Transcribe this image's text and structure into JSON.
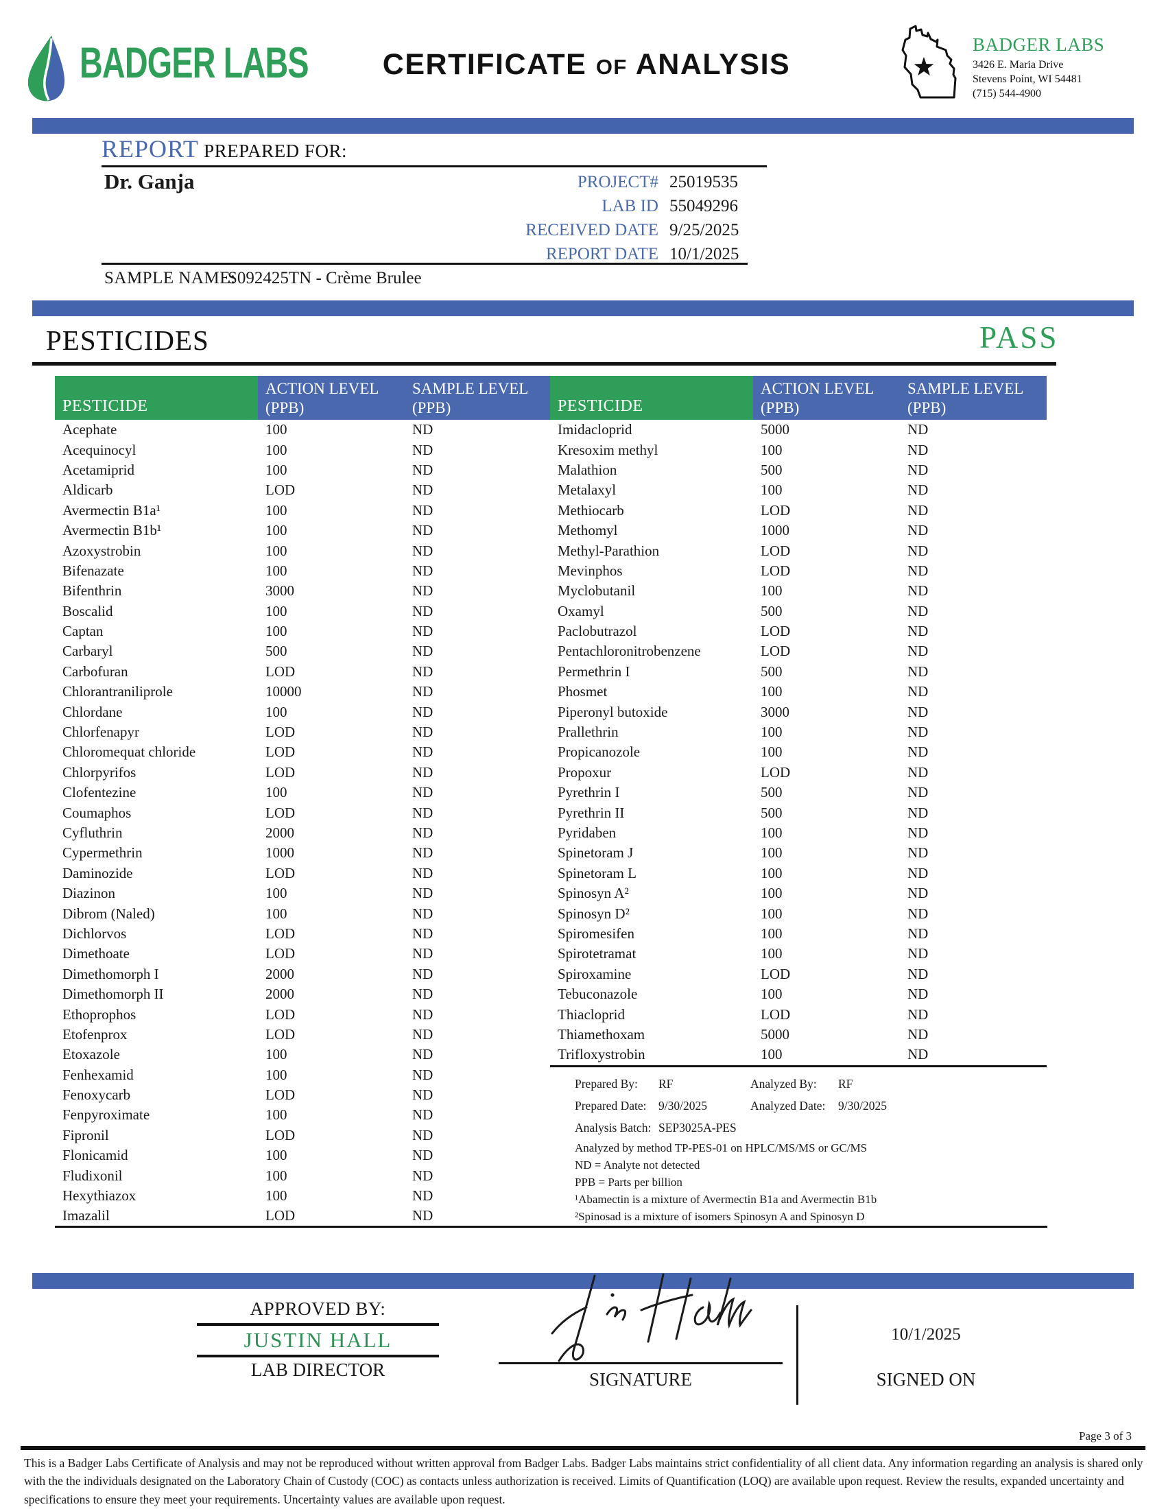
{
  "colors": {
    "accent_blue": "#4464ad",
    "accent_green": "#2f9e58",
    "label_blue": "#4a6aad",
    "approver_green": "#2e8f55"
  },
  "header": {
    "wordmark": "BADGER LABS",
    "title": {
      "part1": "CERTIFICATE",
      "part2": "of",
      "part3": "ANALYSIS"
    },
    "lab": {
      "name": "BADGER LABS",
      "address1": "3426 E. Maria Drive",
      "address2": "Stevens Point, WI 54481",
      "phone": "(715) 544-4900"
    }
  },
  "report": {
    "label_report": "REPORT",
    "label_prepared_for": " PREPARED FOR:",
    "client": "Dr. Ganja",
    "meta": [
      {
        "label": "PROJECT#",
        "value": "25019535"
      },
      {
        "label": "LAB ID",
        "value": "55049296"
      },
      {
        "label": "RECEIVED DATE",
        "value": "9/25/2025"
      },
      {
        "label": "REPORT DATE",
        "value": "10/1/2025"
      }
    ],
    "sample_name_label": "SAMPLE NAME:",
    "sample_name": "S092425TN - Crème Brulee"
  },
  "section": {
    "title": "PESTICIDES",
    "result": "PASS"
  },
  "table": {
    "headers": {
      "pesticide": "PESTICIDE",
      "action1": "ACTION LEVEL",
      "action2": "(PPB)",
      "sample1": "SAMPLE LEVEL",
      "sample2": "(PPB)"
    },
    "left_rows": [
      {
        "name": "Acephate",
        "action": "100",
        "sample": "ND"
      },
      {
        "name": "Acequinocyl",
        "action": "100",
        "sample": "ND"
      },
      {
        "name": "Acetamiprid",
        "action": "100",
        "sample": "ND"
      },
      {
        "name": "Aldicarb",
        "action": "LOD",
        "sample": "ND"
      },
      {
        "name": "Avermectin B1a¹",
        "action": "100",
        "sample": "ND"
      },
      {
        "name": "Avermectin B1b¹",
        "action": "100",
        "sample": "ND"
      },
      {
        "name": "Azoxystrobin",
        "action": "100",
        "sample": "ND"
      },
      {
        "name": "Bifenazate",
        "action": "100",
        "sample": "ND"
      },
      {
        "name": "Bifenthrin",
        "action": "3000",
        "sample": "ND"
      },
      {
        "name": "Boscalid",
        "action": "100",
        "sample": "ND"
      },
      {
        "name": "Captan",
        "action": "100",
        "sample": "ND"
      },
      {
        "name": "Carbaryl",
        "action": "500",
        "sample": "ND"
      },
      {
        "name": "Carbofuran",
        "action": "LOD",
        "sample": "ND"
      },
      {
        "name": "Chlorantraniliprole",
        "action": "10000",
        "sample": "ND"
      },
      {
        "name": "Chlordane",
        "action": "100",
        "sample": "ND"
      },
      {
        "name": "Chlorfenapyr",
        "action": "LOD",
        "sample": "ND"
      },
      {
        "name": "Chloromequat chloride",
        "action": "LOD",
        "sample": "ND"
      },
      {
        "name": "Chlorpyrifos",
        "action": "LOD",
        "sample": "ND"
      },
      {
        "name": "Clofentezine",
        "action": "100",
        "sample": "ND"
      },
      {
        "name": "Coumaphos",
        "action": "LOD",
        "sample": "ND"
      },
      {
        "name": "Cyfluthrin",
        "action": "2000",
        "sample": "ND"
      },
      {
        "name": "Cypermethrin",
        "action": "1000",
        "sample": "ND"
      },
      {
        "name": "Daminozide",
        "action": "LOD",
        "sample": "ND"
      },
      {
        "name": "Diazinon",
        "action": "100",
        "sample": "ND"
      },
      {
        "name": "Dibrom (Naled)",
        "action": "100",
        "sample": "ND"
      },
      {
        "name": "Dichlorvos",
        "action": "LOD",
        "sample": "ND"
      },
      {
        "name": "Dimethoate",
        "action": "LOD",
        "sample": "ND"
      },
      {
        "name": "Dimethomorph I",
        "action": "2000",
        "sample": "ND"
      },
      {
        "name": "Dimethomorph II",
        "action": "2000",
        "sample": "ND"
      },
      {
        "name": "Ethoprophos",
        "action": "LOD",
        "sample": "ND"
      },
      {
        "name": "Etofenprox",
        "action": "LOD",
        "sample": "ND"
      },
      {
        "name": "Etoxazole",
        "action": "100",
        "sample": "ND"
      },
      {
        "name": "Fenhexamid",
        "action": "100",
        "sample": "ND"
      },
      {
        "name": "Fenoxycarb",
        "action": "LOD",
        "sample": "ND"
      },
      {
        "name": "Fenpyroximate",
        "action": "100",
        "sample": "ND"
      },
      {
        "name": "Fipronil",
        "action": "LOD",
        "sample": "ND"
      },
      {
        "name": "Flonicamid",
        "action": "100",
        "sample": "ND"
      },
      {
        "name": "Fludixonil",
        "action": "100",
        "sample": "ND"
      },
      {
        "name": "Hexythiazox",
        "action": "100",
        "sample": "ND"
      },
      {
        "name": "Imazalil",
        "action": "LOD",
        "sample": "ND"
      }
    ],
    "right_rows": [
      {
        "name": "Imidacloprid",
        "action": "5000",
        "sample": "ND"
      },
      {
        "name": "Kresoxim methyl",
        "action": "100",
        "sample": "ND"
      },
      {
        "name": "Malathion",
        "action": "500",
        "sample": "ND"
      },
      {
        "name": "Metalaxyl",
        "action": "100",
        "sample": "ND"
      },
      {
        "name": "Methiocarb",
        "action": "LOD",
        "sample": "ND"
      },
      {
        "name": "Methomyl",
        "action": "1000",
        "sample": "ND"
      },
      {
        "name": "Methyl-Parathion",
        "action": "LOD",
        "sample": "ND"
      },
      {
        "name": "Mevinphos",
        "action": "LOD",
        "sample": "ND"
      },
      {
        "name": "Myclobutanil",
        "action": "100",
        "sample": "ND"
      },
      {
        "name": "Oxamyl",
        "action": "500",
        "sample": "ND"
      },
      {
        "name": "Paclobutrazol",
        "action": "LOD",
        "sample": "ND"
      },
      {
        "name": "Pentachloronitrobenzene",
        "action": "LOD",
        "sample": "ND"
      },
      {
        "name": "Permethrin I",
        "action": "500",
        "sample": "ND"
      },
      {
        "name": "Phosmet",
        "action": "100",
        "sample": "ND"
      },
      {
        "name": "Piperonyl butoxide",
        "action": "3000",
        "sample": "ND"
      },
      {
        "name": "Prallethrin",
        "action": "100",
        "sample": "ND"
      },
      {
        "name": "Propicanozole",
        "action": "100",
        "sample": "ND"
      },
      {
        "name": "Propoxur",
        "action": "LOD",
        "sample": "ND"
      },
      {
        "name": "Pyrethrin I",
        "action": "500",
        "sample": "ND"
      },
      {
        "name": "Pyrethrin II",
        "action": "500",
        "sample": "ND"
      },
      {
        "name": "Pyridaben",
        "action": "100",
        "sample": "ND"
      },
      {
        "name": "Spinetoram J",
        "action": "100",
        "sample": "ND"
      },
      {
        "name": "Spinetoram L",
        "action": "100",
        "sample": "ND"
      },
      {
        "name": "Spinosyn A²",
        "action": "100",
        "sample": "ND"
      },
      {
        "name": "Spinosyn D²",
        "action": "100",
        "sample": "ND"
      },
      {
        "name": "Spiromesifen",
        "action": "100",
        "sample": "ND"
      },
      {
        "name": "Spirotetramat",
        "action": "100",
        "sample": "ND"
      },
      {
        "name": "Spiroxamine",
        "action": "LOD",
        "sample": "ND"
      },
      {
        "name": "Tebuconazole",
        "action": "100",
        "sample": "ND"
      },
      {
        "name": "Thiacloprid",
        "action": "LOD",
        "sample": "ND"
      },
      {
        "name": "Thiamethoxam",
        "action": "5000",
        "sample": "ND"
      },
      {
        "name": "Trifloxystrobin",
        "action": "100",
        "sample": "ND"
      }
    ]
  },
  "notes": {
    "prepared_by_label": "Prepared By:",
    "prepared_by": "RF",
    "analyzed_by_label": "Analyzed By:",
    "analyzed_by": "RF",
    "prepared_date_label": "Prepared Date:",
    "prepared_date": "9/30/2025",
    "analyzed_date_label": "Analyzed Date:",
    "analyzed_date": "9/30/2025",
    "analysis_batch_label": "Analysis Batch:",
    "analysis_batch": "SEP3025A-PES",
    "lines": [
      "Analyzed by method TP-PES-01 on HPLC/MS/MS or GC/MS",
      "ND = Analyte not detected",
      "PPB = Parts per billion",
      "¹Abamectin is a mixture of Avermectin B1a and Avermectin B1b",
      "²Spinosad is a mixture of isomers Spinosyn A and Spinosyn D"
    ]
  },
  "approval": {
    "approved_by_label": "APPROVED BY:",
    "approver": "JUSTIN HALL",
    "approver_title": "LAB DIRECTOR",
    "signature_label": "SIGNATURE",
    "signed_on_label": "SIGNED ON",
    "signed_date": "10/1/2025"
  },
  "footer": {
    "page": "Page 3 of 3",
    "disclaimer": "This is a Badger Labs Certificate of Analysis and may not be reproduced without written approval from Badger Labs. Badger Labs maintains strict confidentiality of all client data. Any information regarding an analysis is shared only with the the individuals designated on the Laboratory Chain of Custody (COC) as contacts unless authorization is received. Limits of Quantification (LOQ) are available upon request. Review the results, expanded uncertainty and specifications to ensure they meet your requirements. Uncertainty values are available upon request."
  }
}
